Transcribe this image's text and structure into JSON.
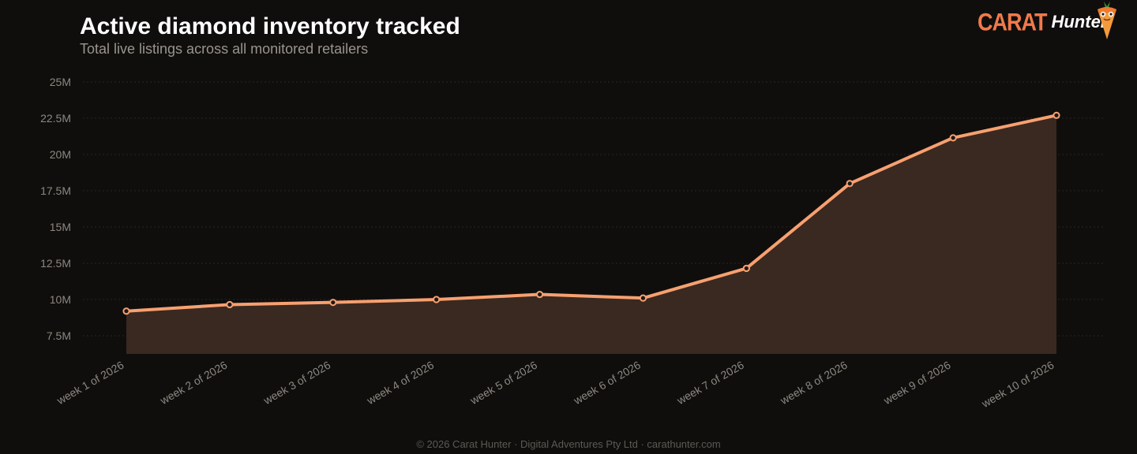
{
  "header": {
    "title": "Active diamond inventory tracked",
    "subtitle": "Total live listings across all monitored retailers"
  },
  "logo": {
    "carat": "CARAT",
    "hunter": "Hunter",
    "mascot_icon": "carrot-mascot-icon"
  },
  "footer": {
    "text": "© 2026 Carat Hunter · Digital Adventures Pty Ltd · carathunter.com"
  },
  "colors": {
    "background": "#0f0e0d",
    "line": "#f7a070",
    "area": "#3a2920",
    "grid": "#2a2724",
    "brand": "#f07a4a"
  },
  "chart_data": {
    "type": "area",
    "title": "Active diamond inventory tracked",
    "subtitle": "Total live listings across all monitored retailers",
    "xlabel": "",
    "ylabel": "",
    "categories": [
      "week 1 of 2026",
      "week 2 of 2026",
      "week 3 of 2026",
      "week 4 of 2026",
      "week 5 of 2026",
      "week 6 of 2026",
      "week 7 of 2026",
      "week 8 of 2026",
      "week 9 of 2026",
      "week 10 of 2026"
    ],
    "values": [
      9200000,
      9650000,
      9800000,
      10000000,
      10350000,
      10100000,
      12150000,
      18000000,
      21150000,
      22700000
    ],
    "y_ticks": [
      7500000,
      10000000,
      12500000,
      15000000,
      17500000,
      20000000,
      22500000,
      25000000
    ],
    "y_tick_labels": [
      "7.5M",
      "10M",
      "12.5M",
      "15M",
      "17.5M",
      "20M",
      "22.5M",
      "25M"
    ],
    "ylim": [
      6250000,
      25000000
    ],
    "grid": true,
    "legend": "none"
  }
}
